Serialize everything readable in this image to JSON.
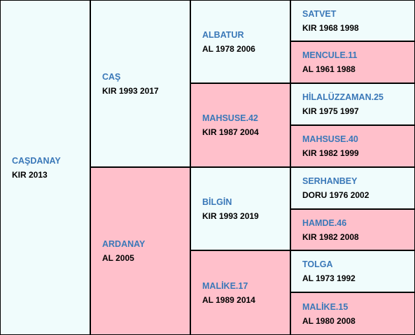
{
  "pedigree": {
    "subject": {
      "name": "CAŞDANAY",
      "info": "KIR 2013"
    },
    "sire": {
      "name": "CAŞ",
      "info": "KIR 1993 2017"
    },
    "dam": {
      "name": "ARDANAY",
      "info": "AL 2005"
    },
    "sire_sire": {
      "name": "ALBATUR",
      "info": "AL 1978 2006"
    },
    "sire_dam": {
      "name": "MAHSUSE.42",
      "info": "KIR 1987 2004"
    },
    "dam_sire": {
      "name": "BİLGİN",
      "info": "KIR 1993 2019"
    },
    "dam_dam": {
      "name": "MALİKE.17",
      "info": "AL 1989 2014"
    },
    "g3": [
      {
        "name": "SATVET",
        "info": "KIR 1968 1998"
      },
      {
        "name": "MENCULE.11",
        "info": "AL 1961 1988"
      },
      {
        "name": "HİLALÜZZAMAN.25",
        "info": "KIR 1975 1997"
      },
      {
        "name": "MAHSUSE.40",
        "info": "KIR 1982 1999"
      },
      {
        "name": "SERHANBEY",
        "info": "DORU 1976 2002"
      },
      {
        "name": "HAMDE.46",
        "info": "KIR 1982 2008"
      },
      {
        "name": "TOLGA",
        "info": "AL 1973 1992"
      },
      {
        "name": "MALİKE.15",
        "info": "AL 1980 2008"
      }
    ]
  }
}
